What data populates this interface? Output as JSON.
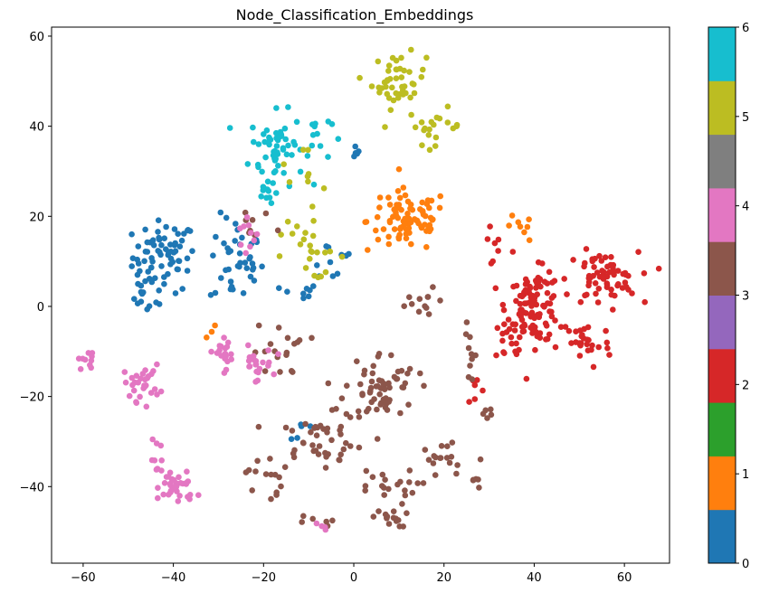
{
  "chart_data": {
    "type": "scatter",
    "title": "Node_Classification_Embeddings",
    "xlabel": "",
    "ylabel": "",
    "xlim": [
      -67,
      70
    ],
    "ylim": [
      -57,
      62
    ],
    "xticks": [
      -60,
      -40,
      -20,
      0,
      20,
      40,
      60
    ],
    "yticks": [
      -40,
      -20,
      0,
      20,
      40,
      60
    ],
    "xtick_labels": [
      "−60",
      "−40",
      "−20",
      "0",
      "20",
      "40",
      "60"
    ],
    "ytick_labels": [
      "−40",
      "−20",
      "0",
      "20",
      "40",
      "60"
    ],
    "grid": false,
    "colorbar": {
      "range": [
        0,
        6
      ],
      "ticks": [
        0,
        1,
        2,
        3,
        4,
        5,
        6
      ],
      "tick_labels": [
        "0",
        "1",
        "2",
        "3",
        "4",
        "5",
        "6"
      ],
      "colors": [
        "#1f77b4",
        "#ff7f0e",
        "#2ca02c",
        "#d62728",
        "#9467bd",
        "#8c564b",
        "#e377c2",
        "#7f7f7f",
        "#bcbd22",
        "#17becf"
      ]
    },
    "class_colors": {
      "0": "#1f77b4",
      "1": "#ff7f0e",
      "2": "#d62728",
      "3": "#8c564b",
      "4": "#e377c2",
      "5": "#bcbd22",
      "6": "#17becf"
    },
    "clusters": [
      {
        "class": 0,
        "cx": -42,
        "cy": 11,
        "sx": 3.5,
        "sy": 4,
        "n": 70
      },
      {
        "class": 0,
        "cx": -47,
        "cy": 2,
        "sx": 1.5,
        "sy": 2,
        "n": 12
      },
      {
        "class": 0,
        "cx": -26,
        "cy": 10,
        "sx": 3,
        "sy": 5,
        "n": 40
      },
      {
        "class": 0,
        "cx": -12,
        "cy": 3,
        "sx": 2,
        "sy": 1,
        "n": 8
      },
      {
        "class": 0,
        "cx": 0,
        "cy": 35,
        "sx": 1,
        "sy": 1,
        "n": 5
      },
      {
        "class": 0,
        "cx": -5,
        "cy": 10,
        "sx": 3,
        "sy": 3,
        "n": 10
      },
      {
        "class": 0,
        "cx": -12,
        "cy": -27,
        "sx": 2,
        "sy": 2,
        "n": 5
      },
      {
        "class": 6,
        "cx": -17,
        "cy": 35,
        "sx": 3,
        "sy": 4,
        "n": 55
      },
      {
        "class": 6,
        "cx": -19,
        "cy": 26,
        "sx": 1,
        "sy": 2,
        "n": 10
      },
      {
        "class": 6,
        "cx": -9,
        "cy": 38,
        "sx": 2,
        "sy": 3,
        "n": 12
      },
      {
        "class": 5,
        "cx": 10,
        "cy": 50,
        "sx": 3,
        "sy": 3,
        "n": 45
      },
      {
        "class": 5,
        "cx": 18,
        "cy": 40,
        "sx": 3,
        "sy": 2,
        "n": 20
      },
      {
        "class": 5,
        "cx": -10,
        "cy": 12,
        "sx": 4,
        "sy": 3,
        "n": 20
      },
      {
        "class": 5,
        "cx": -12,
        "cy": 25,
        "sx": 3,
        "sy": 5,
        "n": 12
      },
      {
        "class": 1,
        "cx": 12,
        "cy": 19,
        "sx": 4.5,
        "sy": 3.5,
        "n": 85
      },
      {
        "class": 1,
        "cx": 36,
        "cy": 17,
        "sx": 2,
        "sy": 1.5,
        "n": 8
      },
      {
        "class": 1,
        "cx": -30,
        "cy": -6,
        "sx": 1,
        "sy": 1,
        "n": 3
      },
      {
        "class": 2,
        "cx": 40,
        "cy": 0,
        "sx": 3,
        "sy": 4,
        "n": 110
      },
      {
        "class": 2,
        "cx": 55,
        "cy": 6,
        "sx": 4,
        "sy": 3,
        "n": 65
      },
      {
        "class": 2,
        "cx": 51,
        "cy": -8,
        "sx": 3,
        "sy": 3,
        "n": 30
      },
      {
        "class": 2,
        "cx": 35,
        "cy": -8,
        "sx": 2,
        "sy": 3,
        "n": 12
      },
      {
        "class": 2,
        "cx": 31,
        "cy": 14,
        "sx": 2,
        "sy": 3,
        "n": 8
      },
      {
        "class": 2,
        "cx": 27,
        "cy": -18,
        "sx": 1,
        "sy": 2,
        "n": 6
      },
      {
        "class": 3,
        "cx": 6,
        "cy": -18,
        "sx": 4,
        "sy": 4,
        "n": 65
      },
      {
        "class": 3,
        "cx": -8,
        "cy": -30,
        "sx": 5,
        "sy": 3,
        "n": 40
      },
      {
        "class": 3,
        "cx": 6,
        "cy": -40,
        "sx": 4,
        "sy": 2,
        "n": 20
      },
      {
        "class": 3,
        "cx": 8,
        "cy": -47,
        "sx": 2,
        "sy": 1,
        "n": 15
      },
      {
        "class": 3,
        "cx": -16,
        "cy": -10,
        "sx": 3,
        "sy": 3,
        "n": 18
      },
      {
        "class": 3,
        "cx": -20,
        "cy": -38,
        "sx": 2,
        "sy": 3,
        "n": 14
      },
      {
        "class": 3,
        "cx": 19,
        "cy": -33,
        "sx": 2,
        "sy": 2,
        "n": 14
      },
      {
        "class": 3,
        "cx": 26,
        "cy": -38,
        "sx": 1.5,
        "sy": 2,
        "n": 8
      },
      {
        "class": 3,
        "cx": 15,
        "cy": 0,
        "sx": 3,
        "sy": 2,
        "n": 12
      },
      {
        "class": 3,
        "cx": 26,
        "cy": -10,
        "sx": 1,
        "sy": 4,
        "n": 10
      },
      {
        "class": 3,
        "cx": -7,
        "cy": -48,
        "sx": 2,
        "sy": 1,
        "n": 6
      },
      {
        "class": 3,
        "cx": -22,
        "cy": 17,
        "sx": 3,
        "sy": 2,
        "n": 8
      },
      {
        "class": 3,
        "cx": 30,
        "cy": -24,
        "sx": 1,
        "sy": 1,
        "n": 5
      },
      {
        "class": 4,
        "cx": -39,
        "cy": -40,
        "sx": 2,
        "sy": 2,
        "n": 35
      },
      {
        "class": 4,
        "cx": -47,
        "cy": -17,
        "sx": 2,
        "sy": 2,
        "n": 30
      },
      {
        "class": 4,
        "cx": -59,
        "cy": -12,
        "sx": 1,
        "sy": 1,
        "n": 10
      },
      {
        "class": 4,
        "cx": -22,
        "cy": -13,
        "sx": 2,
        "sy": 2,
        "n": 22
      },
      {
        "class": 4,
        "cx": -29,
        "cy": -10,
        "sx": 2,
        "sy": 2,
        "n": 18
      },
      {
        "class": 4,
        "cx": -43,
        "cy": -34,
        "sx": 1,
        "sy": 2,
        "n": 10
      },
      {
        "class": 4,
        "cx": -24,
        "cy": 15,
        "sx": 1.5,
        "sy": 3,
        "n": 10
      },
      {
        "class": 4,
        "cx": -8,
        "cy": -49,
        "sx": 1,
        "sy": 0.5,
        "n": 4
      }
    ]
  }
}
